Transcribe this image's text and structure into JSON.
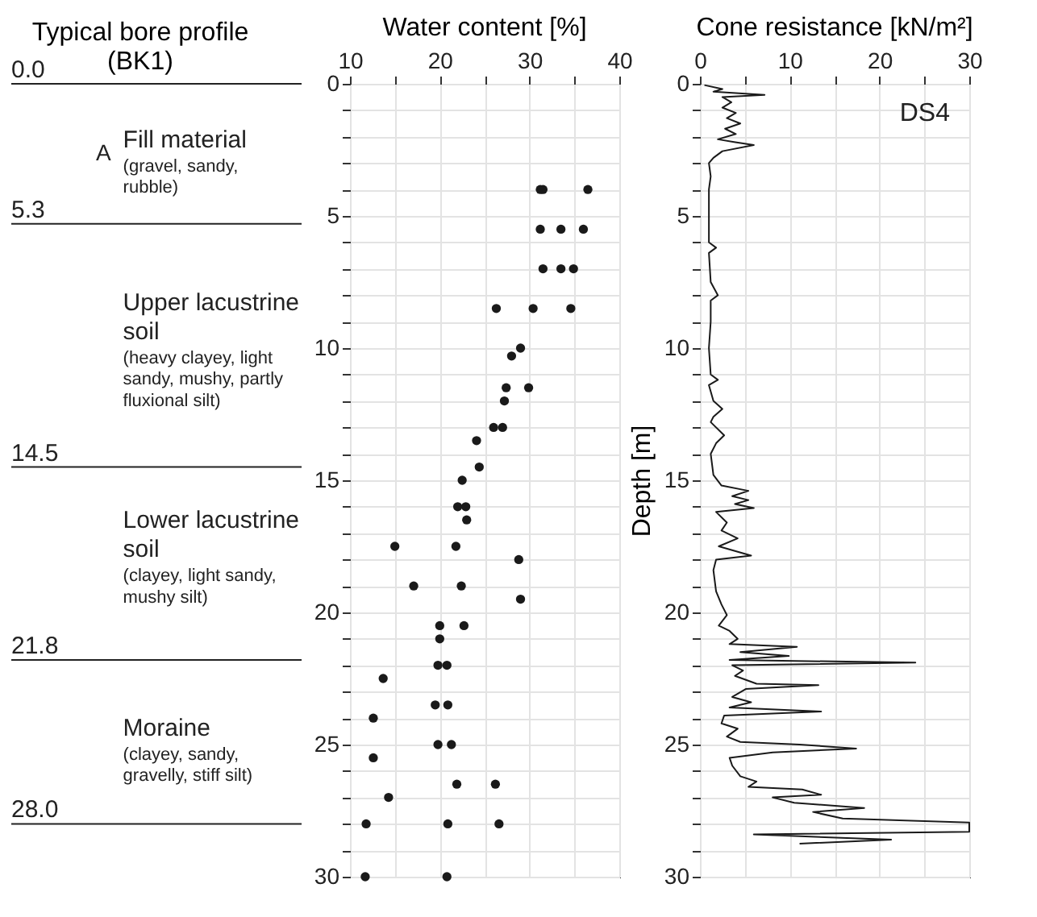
{
  "chart_data": [
    {
      "type": "other",
      "title": "Typical bore profile\n(BK1)"
    },
    {
      "type": "scatter",
      "title": "Water content [%]",
      "xlim": [
        10,
        40
      ],
      "ylim": [
        30,
        0
      ],
      "xticks": [
        10,
        {
          "value": 15,
          "label": null
        },
        20,
        {
          "value": 25,
          "label": null
        },
        30,
        {
          "value": 35,
          "label": null
        },
        40
      ],
      "yticks": [
        0,
        {
          "value": 1,
          "label": null
        },
        {
          "value": 2,
          "label": null
        },
        {
          "value": 3,
          "label": null
        },
        {
          "value": 4,
          "label": null
        },
        5,
        {
          "value": 6,
          "label": null
        },
        {
          "value": 7,
          "label": null
        },
        {
          "value": 8,
          "label": null
        },
        {
          "value": 9,
          "label": null
        },
        10,
        {
          "value": 11,
          "label": null
        },
        {
          "value": 12,
          "label": null
        },
        {
          "value": 13,
          "label": null
        },
        {
          "value": 14,
          "label": null
        },
        15,
        {
          "value": 16,
          "label": null
        },
        {
          "value": 17,
          "label": null
        },
        {
          "value": 18,
          "label": null
        },
        {
          "value": 19,
          "label": null
        },
        20,
        {
          "value": 21,
          "label": null
        },
        {
          "value": 22,
          "label": null
        },
        {
          "value": 23,
          "label": null
        },
        {
          "value": 24,
          "label": null
        },
        25,
        {
          "value": 26,
          "label": null
        },
        {
          "value": 27,
          "label": null
        },
        {
          "value": 28,
          "label": null
        },
        {
          "value": 29,
          "label": null
        },
        30
      ],
      "grid": true,
      "marker": "circle",
      "ref_lines": [
        {
          "axis": "y",
          "value": 0,
          "label": "0.0"
        },
        {
          "axis": "y",
          "value": 5.3,
          "label": "5.3"
        },
        {
          "axis": "y",
          "value": 14.5,
          "label": "14.5"
        },
        {
          "axis": "y",
          "value": 21.8,
          "label": "21.8"
        },
        {
          "axis": "y",
          "value": 28.0,
          "label": "28.0"
        }
      ],
      "annotations": [
        "A",
        "Fill material",
        "(gravel, sandy, rubble)",
        "Upper lacustrine soil",
        "(heavy clayey, light sandy, mushy, partly fluxional silt)",
        "Lower lacustrine soil",
        "(clayey, light sandy, mushy silt)",
        "Moraine",
        "(clayey, sandy, gravelly, stiff silt)"
      ],
      "series": [
        {
          "color": "#1a1a1a",
          "x": [
            31.2,
            31.5,
            36.5,
            31.2,
            33.5,
            36.0,
            31.5,
            33.5,
            34.9,
            26.3,
            30.4,
            34.6,
            29.0,
            28.0,
            27.4,
            29.9,
            27.2,
            26.0,
            27.0,
            24.1,
            24.4,
            22.5,
            22.0,
            22.9,
            23.0,
            15.0,
            21.8,
            28.8,
            17.1,
            22.4,
            29.0,
            20.0,
            22.7,
            20.0,
            19.8,
            20.8,
            13.7,
            19.5,
            20.9,
            12.6,
            19.8,
            21.3,
            12.6,
            21.9,
            26.2,
            14.3,
            11.8,
            20.9,
            26.6,
            11.7,
            20.8
          ],
          "values": [
            4.0,
            4.0,
            4.0,
            5.5,
            5.5,
            5.5,
            7.0,
            7.0,
            7.0,
            8.5,
            8.5,
            8.5,
            10.0,
            10.3,
            11.5,
            11.5,
            12.0,
            13.0,
            13.0,
            13.5,
            14.5,
            15.0,
            16.0,
            16.0,
            16.5,
            17.5,
            17.5,
            18.0,
            19.0,
            19.0,
            19.5,
            20.5,
            20.5,
            21.0,
            22.0,
            22.0,
            22.5,
            23.5,
            23.5,
            24.0,
            25.0,
            25.0,
            25.5,
            26.5,
            26.5,
            27.0,
            28.0,
            28.0,
            28.0,
            30.0,
            30.0
          ]
        }
      ]
    },
    {
      "type": "line",
      "title": "Cone resistance [kN/m²]",
      "ylabel": "Depth [m]",
      "xlim": [
        0,
        30
      ],
      "ylim": [
        30,
        0
      ],
      "xticks": [
        0,
        {
          "value": 5,
          "label": null
        },
        10,
        {
          "value": 15,
          "label": null
        },
        20,
        {
          "value": 25,
          "label": null
        },
        30
      ],
      "yticks": [
        0,
        {
          "value": 1,
          "label": null
        },
        {
          "value": 2,
          "label": null
        },
        {
          "value": 3,
          "label": null
        },
        {
          "value": 4,
          "label": null
        },
        5,
        {
          "value": 6,
          "label": null
        },
        {
          "value": 7,
          "label": null
        },
        {
          "value": 8,
          "label": null
        },
        {
          "value": 9,
          "label": null
        },
        10,
        {
          "value": 11,
          "label": null
        },
        {
          "value": 12,
          "label": null
        },
        {
          "value": 13,
          "label": null
        },
        {
          "value": 14,
          "label": null
        },
        15,
        {
          "value": 16,
          "label": null
        },
        {
          "value": 17,
          "label": null
        },
        {
          "value": 18,
          "label": null
        },
        {
          "value": 19,
          "label": null
        },
        20,
        {
          "value": 21,
          "label": null
        },
        {
          "value": 22,
          "label": null
        },
        {
          "value": 23,
          "label": null
        },
        {
          "value": 24,
          "label": null
        },
        25,
        {
          "value": 26,
          "label": null
        },
        {
          "value": 27,
          "label": null
        },
        {
          "value": 28,
          "label": null
        },
        {
          "value": 29,
          "label": null
        },
        30
      ],
      "grid": true,
      "annotations": [
        "DS4"
      ],
      "series": [
        {
          "color": "#1a1a1a",
          "x": [
            0.5,
            2.5,
            1.5,
            7.2,
            2.5,
            3.5,
            2.5,
            4.0,
            3.0,
            4.5,
            2.8,
            4.0,
            2.0,
            3.8,
            6.0,
            2.5,
            1.5,
            1.0,
            1.2,
            1.0,
            1.0,
            1.0,
            1.8,
            1.0,
            1.2,
            2.0,
            1.2,
            1.2,
            1.0,
            1.2,
            2.0,
            1.0,
            1.5,
            2.5,
            1.5,
            1.2,
            2.7,
            1.8,
            1.2,
            1.5,
            2.4,
            5.4,
            3.6,
            5.4,
            3.9,
            6.0,
            1.8,
            3.0,
            2.4,
            4.2,
            2.1,
            5.7,
            1.8,
            1.5,
            1.8,
            2.4,
            3.0,
            2.1,
            3.3,
            4.2,
            3.3,
            10.8,
            4.5,
            9.9,
            3.3,
            24.0,
            3.6,
            4.8,
            3.9,
            6.3,
            13.2,
            5.1,
            3.6,
            5.7,
            3.3,
            13.5,
            2.7,
            2.4,
            4.2,
            3.0,
            4.5,
            11.1,
            17.4,
            8.1,
            3.3,
            3.6,
            4.5,
            6.3,
            5.4,
            11.4,
            13.5,
            8.1,
            10.5,
            18.3,
            12.6,
            15.9,
            30.0,
            30.0,
            6.0,
            21.3,
            11.1
          ],
          "values": [
            0.05,
            0.2,
            0.3,
            0.42,
            0.5,
            0.7,
            0.9,
            1.1,
            1.3,
            1.5,
            1.7,
            1.9,
            2.1,
            2.2,
            2.32,
            2.55,
            2.8,
            3.0,
            3.5,
            4.0,
            5.0,
            6.0,
            6.2,
            6.4,
            7.5,
            8.0,
            8.2,
            9.0,
            10.0,
            11.0,
            11.2,
            11.4,
            12.0,
            12.3,
            12.6,
            12.8,
            13.3,
            13.6,
            14.0,
            14.8,
            15.2,
            15.4,
            15.6,
            15.75,
            15.9,
            16.05,
            16.2,
            16.6,
            16.9,
            17.2,
            17.5,
            17.85,
            18.0,
            18.4,
            19.2,
            19.7,
            20.1,
            20.5,
            20.7,
            21.0,
            21.2,
            21.3,
            21.5,
            21.65,
            21.8,
            21.9,
            22.0,
            22.2,
            22.4,
            22.7,
            22.75,
            22.9,
            23.2,
            23.4,
            23.6,
            23.75,
            23.9,
            24.2,
            24.4,
            24.7,
            24.9,
            25.0,
            25.15,
            25.3,
            25.5,
            25.8,
            26.2,
            26.4,
            26.6,
            26.7,
            26.9,
            27.0,
            27.2,
            27.4,
            27.55,
            27.8,
            27.95,
            28.3,
            28.4,
            28.6,
            28.75
          ]
        }
      ]
    }
  ]
}
